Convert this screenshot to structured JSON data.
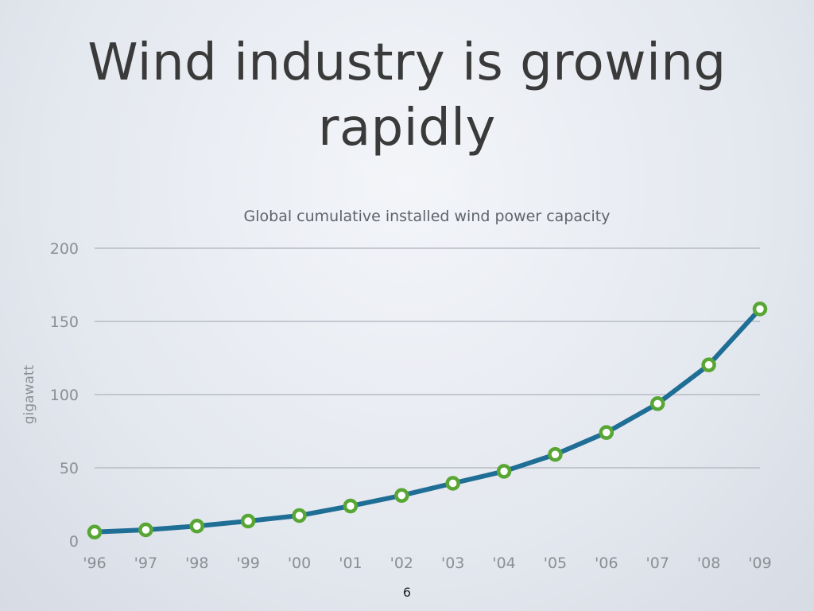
{
  "slide": {
    "title_line1": "Wind industry is growing",
    "title_line2": "rapidly",
    "page_number": "6"
  },
  "colors": {
    "line": "#1f6e95",
    "marker_stroke": "#58a633",
    "marker_fill": "#ffffff",
    "grid": "#b7bcc4",
    "axis_text": "#8a8f96",
    "title_text": "#5f646b"
  },
  "chart_data": {
    "type": "line",
    "title": "Global cumulative installed wind power capacity",
    "xlabel": "",
    "ylabel": "gigawatt",
    "categories": [
      "'96",
      "'97",
      "'98",
      "'99",
      "'00",
      "'01",
      "'02",
      "'03",
      "'04",
      "'05",
      "'06",
      "'07",
      "'08",
      "'09"
    ],
    "series": [
      {
        "values": [
          6.1,
          7.6,
          10.2,
          13.6,
          17.4,
          23.9,
          31.1,
          39.4,
          47.6,
          59.1,
          74.1,
          93.8,
          120.3,
          158.5
        ]
      }
    ],
    "ylim": [
      0,
      200
    ],
    "yticks": [
      "0",
      "50",
      "100",
      "150",
      "200"
    ],
    "grid": true,
    "legend": "none"
  }
}
